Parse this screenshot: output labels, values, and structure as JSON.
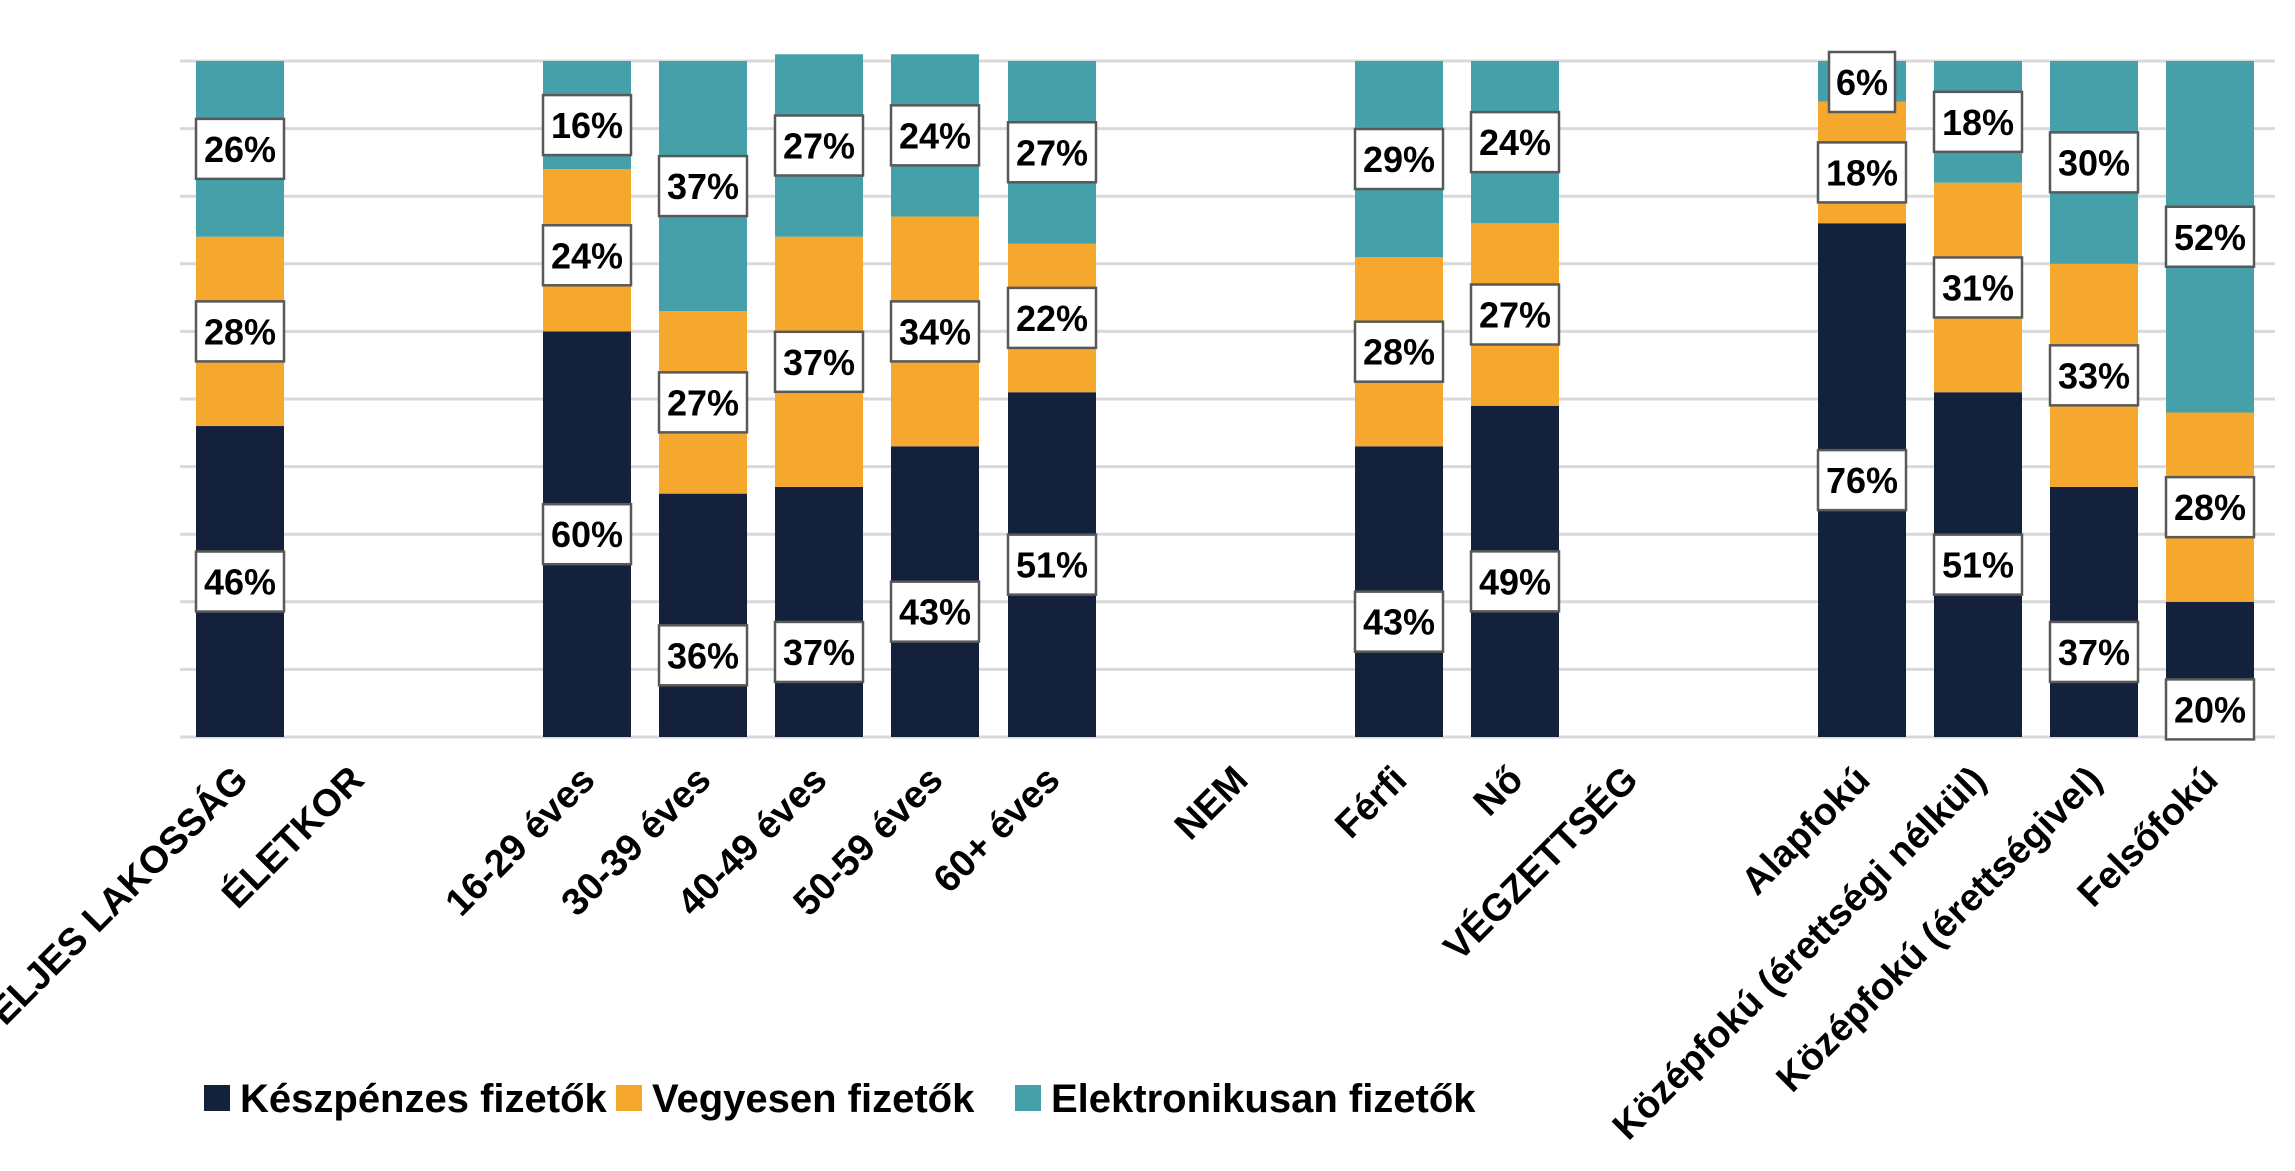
{
  "chart_data": {
    "type": "bar",
    "stacked": true,
    "stack_mode": "percent",
    "categories": [
      "TELJES LAKOSSÁG",
      "ÉLETKOR",
      "16-29 éves",
      "30-39 éves",
      "40-49 éves",
      "50-59 éves",
      "60+ éves",
      "NEM",
      "Férfi",
      "Nő",
      "VÉGZETTSÉG",
      "Alapfokú",
      "Középfokú (érettségi nélkül)",
      "Középfokú (érettségivel)",
      "Felsőfokú"
    ],
    "series": [
      {
        "name": "Készpénzes fizetők",
        "color": "#14213d",
        "values": [
          46,
          null,
          60,
          36,
          37,
          43,
          51,
          null,
          43,
          49,
          null,
          76,
          51,
          37,
          20
        ],
        "labels": [
          "46%",
          null,
          "60%",
          "36%",
          "37%",
          "43%",
          "51%",
          null,
          "43%",
          "49%",
          null,
          "76%",
          "51%",
          "37%",
          "20%"
        ]
      },
      {
        "name": "Vegyesen fizetők",
        "color": "#f5a82d",
        "values": [
          28,
          null,
          24,
          27,
          37,
          34,
          22,
          null,
          28,
          27,
          null,
          18,
          31,
          33,
          28
        ],
        "labels": [
          "28%",
          null,
          "24%",
          "27%",
          "37%",
          "34%",
          "22%",
          null,
          "28%",
          "27%",
          null,
          "18%",
          "31%",
          "33%",
          "28%"
        ]
      },
      {
        "name": "Elektronikusan fizetők",
        "color": "#45a0aa",
        "values": [
          26,
          null,
          16,
          37,
          27,
          24,
          27,
          null,
          29,
          24,
          null,
          6,
          18,
          30,
          52
        ],
        "labels": [
          "26%",
          null,
          "16%",
          "37%",
          "27%",
          "24%",
          "27%",
          null,
          "29%",
          "24%",
          null,
          "6%",
          "18%",
          "30%",
          "52%"
        ]
      }
    ],
    "title": "",
    "xlabel": "",
    "ylabel": "",
    "ylim": [
      0,
      100
    ],
    "grid": true,
    "legend_position": "bottom-left"
  }
}
